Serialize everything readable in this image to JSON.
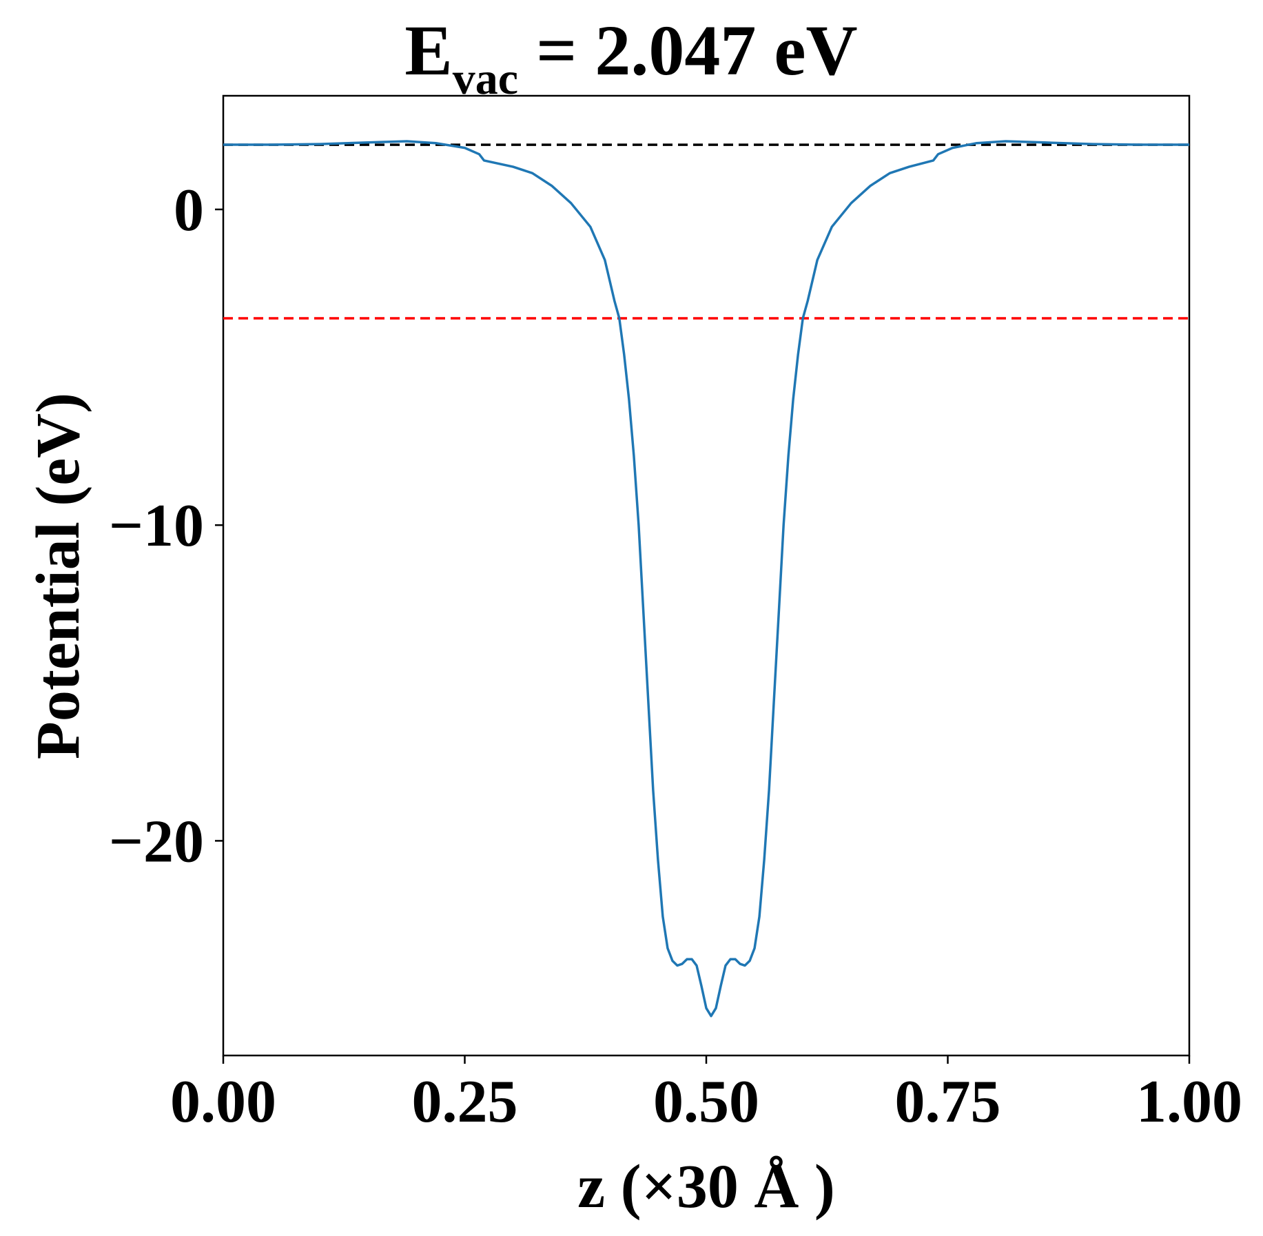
{
  "chart_data": {
    "type": "line",
    "title": {
      "main": "E",
      "subscript": "vac",
      "rest": " = 2.047 eV"
    },
    "xlabel": "z (×30 Å )",
    "ylabel": "Potential (eV)",
    "xlim": [
      0.0,
      1.0
    ],
    "ylim": [
      -26.8,
      3.6
    ],
    "x_ticks": [
      0.0,
      0.25,
      0.5,
      0.75,
      1.0
    ],
    "x_tick_labels": [
      "0.00",
      "0.25",
      "0.50",
      "0.75",
      "1.00"
    ],
    "y_ticks": [
      0,
      -10,
      -20
    ],
    "y_tick_labels": [
      "0",
      "−10",
      "−20"
    ],
    "grid": false,
    "legend": "none",
    "reference_lines": [
      {
        "y": 2.047,
        "style": "dashed",
        "color": "#000000"
      },
      {
        "y": -3.45,
        "style": "dashed",
        "color": "#ff0000"
      }
    ],
    "series": [
      {
        "color": "#1f77b4",
        "points": [
          [
            0.0,
            2.05
          ],
          [
            0.05,
            2.05
          ],
          [
            0.1,
            2.07
          ],
          [
            0.15,
            2.12
          ],
          [
            0.19,
            2.16
          ],
          [
            0.22,
            2.1
          ],
          [
            0.25,
            1.95
          ],
          [
            0.265,
            1.75
          ],
          [
            0.27,
            1.55
          ],
          [
            0.3,
            1.35
          ],
          [
            0.32,
            1.15
          ],
          [
            0.34,
            0.75
          ],
          [
            0.36,
            0.2
          ],
          [
            0.38,
            -0.55
          ],
          [
            0.395,
            -1.6
          ],
          [
            0.405,
            -2.9
          ],
          [
            0.41,
            -3.45
          ],
          [
            0.415,
            -4.6
          ],
          [
            0.42,
            -6.0
          ],
          [
            0.425,
            -7.8
          ],
          [
            0.43,
            -10.0
          ],
          [
            0.435,
            -12.8
          ],
          [
            0.44,
            -15.6
          ],
          [
            0.445,
            -18.4
          ],
          [
            0.45,
            -20.6
          ],
          [
            0.455,
            -22.4
          ],
          [
            0.46,
            -23.4
          ],
          [
            0.465,
            -23.8
          ],
          [
            0.47,
            -23.95
          ],
          [
            0.475,
            -23.9
          ],
          [
            0.48,
            -23.75
          ],
          [
            0.485,
            -23.75
          ],
          [
            0.49,
            -23.95
          ],
          [
            0.495,
            -24.6
          ],
          [
            0.5,
            -25.3
          ],
          [
            0.505,
            -25.55
          ],
          [
            0.51,
            -25.3
          ],
          [
            0.515,
            -24.6
          ],
          [
            0.52,
            -23.95
          ],
          [
            0.525,
            -23.75
          ],
          [
            0.53,
            -23.75
          ],
          [
            0.535,
            -23.9
          ],
          [
            0.54,
            -23.95
          ],
          [
            0.545,
            -23.8
          ],
          [
            0.55,
            -23.4
          ],
          [
            0.555,
            -22.4
          ],
          [
            0.56,
            -20.6
          ],
          [
            0.565,
            -18.4
          ],
          [
            0.57,
            -15.6
          ],
          [
            0.575,
            -12.8
          ],
          [
            0.58,
            -10.0
          ],
          [
            0.585,
            -7.8
          ],
          [
            0.59,
            -6.0
          ],
          [
            0.595,
            -4.6
          ],
          [
            0.6,
            -3.45
          ],
          [
            0.605,
            -2.9
          ],
          [
            0.615,
            -1.6
          ],
          [
            0.63,
            -0.55
          ],
          [
            0.65,
            0.2
          ],
          [
            0.67,
            0.75
          ],
          [
            0.69,
            1.15
          ],
          [
            0.71,
            1.35
          ],
          [
            0.735,
            1.55
          ],
          [
            0.74,
            1.75
          ],
          [
            0.755,
            1.95
          ],
          [
            0.78,
            2.1
          ],
          [
            0.81,
            2.16
          ],
          [
            0.85,
            2.12
          ],
          [
            0.9,
            2.07
          ],
          [
            0.95,
            2.05
          ],
          [
            1.0,
            2.05
          ]
        ]
      }
    ]
  }
}
